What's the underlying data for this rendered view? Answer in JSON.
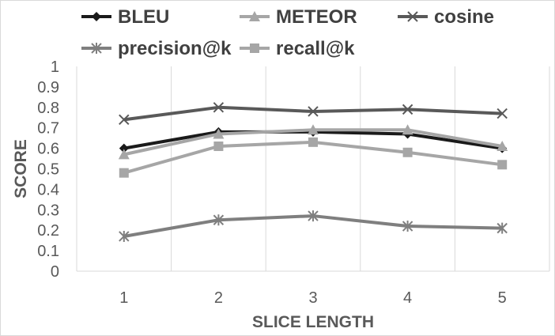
{
  "chart_data": {
    "type": "line",
    "x": [
      1,
      2,
      3,
      4,
      5
    ],
    "xlabel": "SLICE LENGTH",
    "ylabel": "SCORE",
    "ylim": [
      0,
      1
    ],
    "yticks": [
      "0",
      "0.1",
      "0.2",
      "0.3",
      "0.4",
      "0.5",
      "0.6",
      "0.7",
      "0.8",
      "0.9",
      "1"
    ],
    "xticks": [
      "1",
      "2",
      "3",
      "4",
      "5"
    ],
    "grid": "vertical",
    "legend_position": "top",
    "series": [
      {
        "name": "BLEU",
        "values": [
          0.6,
          0.68,
          0.68,
          0.67,
          0.6
        ],
        "color": "#1a1a1a",
        "marker": "diamond"
      },
      {
        "name": "METEOR",
        "values": [
          0.57,
          0.67,
          0.69,
          0.69,
          0.61
        ],
        "color": "#a6a6a6",
        "marker": "triangle"
      },
      {
        "name": "cosine",
        "values": [
          0.74,
          0.8,
          0.78,
          0.79,
          0.77
        ],
        "color": "#595959",
        "marker": "x"
      },
      {
        "name": "precision@k",
        "values": [
          0.17,
          0.25,
          0.27,
          0.22,
          0.21
        ],
        "color": "#7f7f7f",
        "marker": "star"
      },
      {
        "name": "recall@k",
        "values": [
          0.48,
          0.61,
          0.63,
          0.58,
          0.52
        ],
        "color": "#a6a6a6",
        "marker": "square"
      }
    ]
  }
}
